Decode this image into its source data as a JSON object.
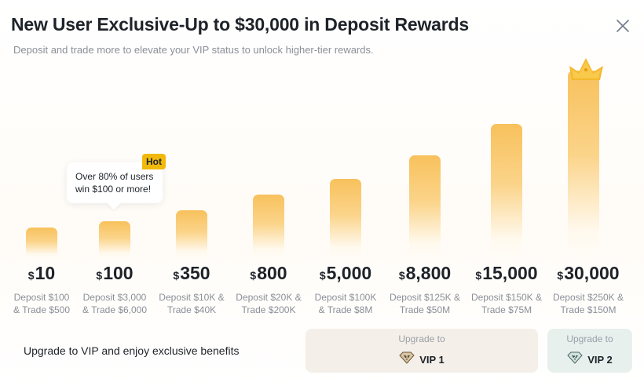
{
  "header": {
    "title": "New User Exclusive-Up to $30,000 in Deposit Rewards",
    "subtitle": "Deposit and trade more to elevate your VIP status to unlock higher-tier rewards."
  },
  "tooltip": {
    "line1": "Over 80% of users",
    "line2": "win $100 or more!",
    "badge": "Hot"
  },
  "currency_symbol": "$",
  "tiers": [
    {
      "amount": "10",
      "req1": "Deposit $100",
      "req2": "& Trade $500"
    },
    {
      "amount": "100",
      "req1": "Deposit $3,000",
      "req2": "& Trade $6,000"
    },
    {
      "amount": "350",
      "req1": "Deposit $10K &",
      "req2": "Trade $40K"
    },
    {
      "amount": "800",
      "req1": "Deposit $20K &",
      "req2": "Trade $200K"
    },
    {
      "amount": "5,000",
      "req1": "Deposit $100K",
      "req2": "& Trade $8M"
    },
    {
      "amount": "8,800",
      "req1": "Deposit $125K &",
      "req2": "Trade $50M"
    },
    {
      "amount": "15,000",
      "req1": "Deposit $150K &",
      "req2": "Trade $75M"
    },
    {
      "amount": "30,000",
      "req1": "Deposit $250K &",
      "req2": "Trade $150M"
    }
  ],
  "footer": {
    "text": "Upgrade to VIP and enjoy exclusive benefits",
    "vip1": {
      "label": "Upgrade to",
      "name": "VIP 1"
    },
    "vip2": {
      "label": "Upgrade to",
      "name": "VIP 2"
    }
  },
  "colors": {
    "bar": "#f8c15c",
    "hot_badge": "#f0b90b",
    "vip1_bg": "#f4efe8",
    "vip2_bg": "#e8f0ee"
  },
  "icons": {
    "close": "close-icon",
    "crown": "crown-icon",
    "vip1": "vip1-diamond-icon",
    "vip2": "vip2-diamond-icon"
  }
}
